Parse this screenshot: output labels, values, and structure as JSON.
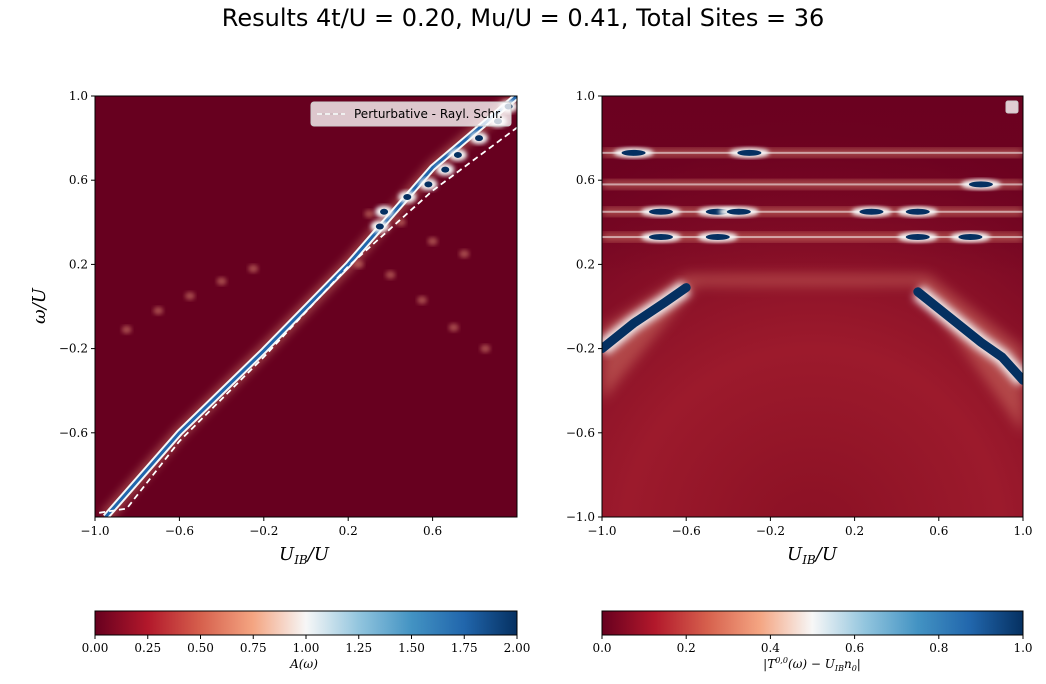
{
  "figure": {
    "suptitle": "Results 4t/U = 0.20, Mu/U = 0.41, Total Sites = 36"
  },
  "colors": {
    "dark_red": "#67001f",
    "mid_red": "#b2182b",
    "light_red": "#f4a582",
    "white": "#f7f7f7",
    "light_blue": "#92c5de",
    "mid_blue": "#2166ac",
    "dark_blue": "#053061",
    "dashed_line": "#ffffff"
  },
  "chart_data": [
    {
      "type": "heatmap",
      "title": "",
      "xlabel": "U_IB/U",
      "ylabel": "ω/U",
      "xlim": [
        -1.0,
        1.0
      ],
      "ylim": [
        -1.0,
        1.0
      ],
      "xticks": [
        "−1.0",
        "−0.6",
        "−0.2",
        "0.2",
        "0.6"
      ],
      "yticks": [
        "−0.6",
        "−0.2",
        "0.2",
        "0.6",
        "1.0"
      ],
      "legend": {
        "position": "top-right",
        "entries": [
          "Perturbative - Rayl. Schr."
        ]
      },
      "colorbar": {
        "label": "A(ω)",
        "range": [
          0.0,
          2.0
        ],
        "ticks": [
          "0.00",
          "0.25",
          "0.50",
          "0.75",
          "1.00",
          "1.25",
          "1.50",
          "1.75",
          "2.00"
        ]
      },
      "main_branch": {
        "x": [
          -0.95,
          -0.6,
          -0.2,
          0.2,
          0.6,
          1.0
        ],
        "y": [
          -1.0,
          -0.6,
          -0.21,
          0.2,
          0.66,
          1.0
        ]
      },
      "perturbative_curve": {
        "x": [
          -0.98,
          -0.85,
          -0.6,
          -0.2,
          0.2,
          0.6,
          1.0
        ],
        "y": [
          -0.98,
          -0.96,
          -0.64,
          -0.24,
          0.19,
          0.55,
          0.85
        ]
      },
      "side_branches": [
        {
          "x": [
            -0.85,
            -0.7,
            -0.55,
            -0.4,
            -0.25
          ],
          "y": [
            -0.11,
            -0.02,
            0.05,
            0.12,
            0.18
          ]
        },
        {
          "x": [
            0.25,
            0.4,
            0.55,
            0.7,
            0.85
          ],
          "y": [
            0.2,
            0.15,
            0.03,
            -0.1,
            -0.2
          ]
        },
        {
          "x": [
            0.3,
            0.45,
            0.6,
            0.75
          ],
          "y": [
            0.44,
            0.4,
            0.31,
            0.25
          ]
        }
      ],
      "peaks": [
        {
          "x": 0.37,
          "y": 0.45
        },
        {
          "x": 0.48,
          "y": 0.52
        },
        {
          "x": 0.58,
          "y": 0.58
        },
        {
          "x": 0.66,
          "y": 0.65
        },
        {
          "x": 0.72,
          "y": 0.72
        },
        {
          "x": 0.82,
          "y": 0.8
        },
        {
          "x": 0.91,
          "y": 0.88
        },
        {
          "x": 0.96,
          "y": 0.95
        },
        {
          "x": 0.35,
          "y": 0.38
        }
      ]
    },
    {
      "type": "heatmap",
      "title": "",
      "xlabel": "U_IB/U",
      "ylabel": "",
      "xlim": [
        -1.0,
        1.0
      ],
      "ylim": [
        -1.0,
        1.0
      ],
      "xticks": [
        "−1.0",
        "−0.6",
        "−0.2",
        "0.2",
        "0.6",
        "1.0"
      ],
      "yticks": [
        "−1.0",
        "−0.6",
        "−0.2",
        "0.2",
        "0.6",
        "1.0"
      ],
      "legend": {
        "position": "top-right",
        "entries": [
          ""
        ]
      },
      "colorbar": {
        "label": "|T^{0,0}(ω) − U_{IB} n_0|",
        "range": [
          0.0,
          1.0
        ],
        "ticks": [
          "0.0",
          "0.2",
          "0.4",
          "0.6",
          "0.8",
          "1.0"
        ]
      },
      "left_branch": {
        "x": [
          -1.0,
          -0.85,
          -0.7,
          -0.6
        ],
        "y": [
          -0.2,
          -0.08,
          0.02,
          0.09
        ]
      },
      "right_branch": {
        "x": [
          0.5,
          0.65,
          0.8,
          0.9,
          1.0
        ],
        "y": [
          0.07,
          -0.05,
          -0.17,
          -0.24,
          -0.35
        ]
      },
      "bands": [
        {
          "y": 0.73,
          "peaks_x": [
            -0.85,
            -0.3
          ]
        },
        {
          "y": 0.58,
          "peaks_x": [
            0.8
          ]
        },
        {
          "y": 0.45,
          "peaks_x": [
            -0.72,
            -0.45,
            -0.35,
            0.28,
            0.5
          ]
        },
        {
          "y": 0.33,
          "peaks_x": [
            -0.72,
            -0.45,
            0.5,
            0.75
          ]
        }
      ]
    }
  ],
  "axis_text": {
    "left_xlabel": "U",
    "left_xlabel_sub": "IB",
    "left_xlabel_tail": "/U",
    "left_ylabel": "ω/U",
    "right_xlabel": "U",
    "right_xlabel_sub": "IB",
    "right_xlabel_tail": "/U",
    "cb1_label": "A(ω)",
    "cb2_label": "|T",
    "cb2_sup": "0,0",
    "cb2_mid": "(ω) − U",
    "cb2_sub1": "IB",
    "cb2_tail": "n",
    "cb2_sub2": "0",
    "cb2_end": "|"
  }
}
